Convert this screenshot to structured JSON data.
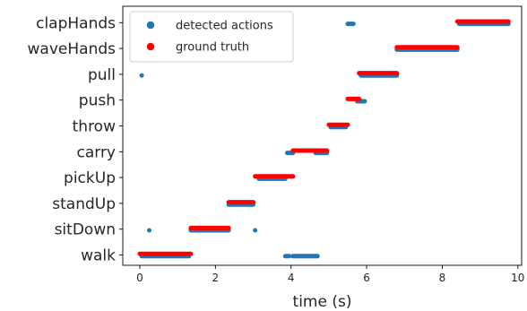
{
  "chart_data": {
    "type": "scatter",
    "title": "",
    "xlabel": "time (s)",
    "ylabel": "",
    "xlim": [
      -0.45,
      10.1
    ],
    "x_ticks": [
      0,
      2,
      4,
      6,
      8,
      10
    ],
    "categories": [
      "walk",
      "sitDown",
      "standUp",
      "pickUp",
      "carry",
      "throw",
      "push",
      "pull",
      "waveHands",
      "clapHands"
    ],
    "grid": false,
    "legend": {
      "placement": "top-left",
      "entries": [
        "detected actions",
        "ground truth"
      ]
    },
    "series": [
      {
        "name": "detected actions",
        "color": "#1f77b4",
        "offset": -0.1,
        "segments": [
          {
            "category": "walk",
            "start": 0.05,
            "end": 1.3
          },
          {
            "category": "walk",
            "start": 3.85,
            "end": 3.95
          },
          {
            "category": "walk",
            "start": 4.05,
            "end": 4.7
          },
          {
            "category": "sitDown",
            "start": 0.25,
            "end": 0.25
          },
          {
            "category": "sitDown",
            "start": 1.35,
            "end": 2.35
          },
          {
            "category": "sitDown",
            "start": 3.05,
            "end": 3.05
          },
          {
            "category": "standUp",
            "start": 2.35,
            "end": 3.0
          },
          {
            "category": "pickUp",
            "start": 3.15,
            "end": 3.85
          },
          {
            "category": "carry",
            "start": 3.9,
            "end": 4.05
          },
          {
            "category": "carry",
            "start": 4.65,
            "end": 4.95
          },
          {
            "category": "throw",
            "start": 5.05,
            "end": 5.45
          },
          {
            "category": "push",
            "start": 5.75,
            "end": 5.95
          },
          {
            "category": "pull",
            "start": 0.05,
            "end": 0.05
          },
          {
            "category": "pull",
            "start": 5.85,
            "end": 6.8
          },
          {
            "category": "waveHands",
            "start": 6.8,
            "end": 8.4
          },
          {
            "category": "clapHands",
            "start": 5.5,
            "end": 5.65
          },
          {
            "category": "clapHands",
            "start": 8.45,
            "end": 9.75
          }
        ]
      },
      {
        "name": "ground truth",
        "color": "#ff0000",
        "offset": 0.1,
        "segments": [
          {
            "category": "walk",
            "start": 0.0,
            "end": 1.35
          },
          {
            "category": "sitDown",
            "start": 1.35,
            "end": 2.35
          },
          {
            "category": "standUp",
            "start": 2.35,
            "end": 3.0
          },
          {
            "category": "pickUp",
            "start": 3.05,
            "end": 4.05
          },
          {
            "category": "carry",
            "start": 4.05,
            "end": 4.95
          },
          {
            "category": "throw",
            "start": 5.0,
            "end": 5.5
          },
          {
            "category": "push",
            "start": 5.5,
            "end": 5.8
          },
          {
            "category": "pull",
            "start": 5.8,
            "end": 6.8
          },
          {
            "category": "waveHands",
            "start": 6.8,
            "end": 8.4
          },
          {
            "category": "clapHands",
            "start": 8.4,
            "end": 9.75
          }
        ]
      }
    ]
  }
}
